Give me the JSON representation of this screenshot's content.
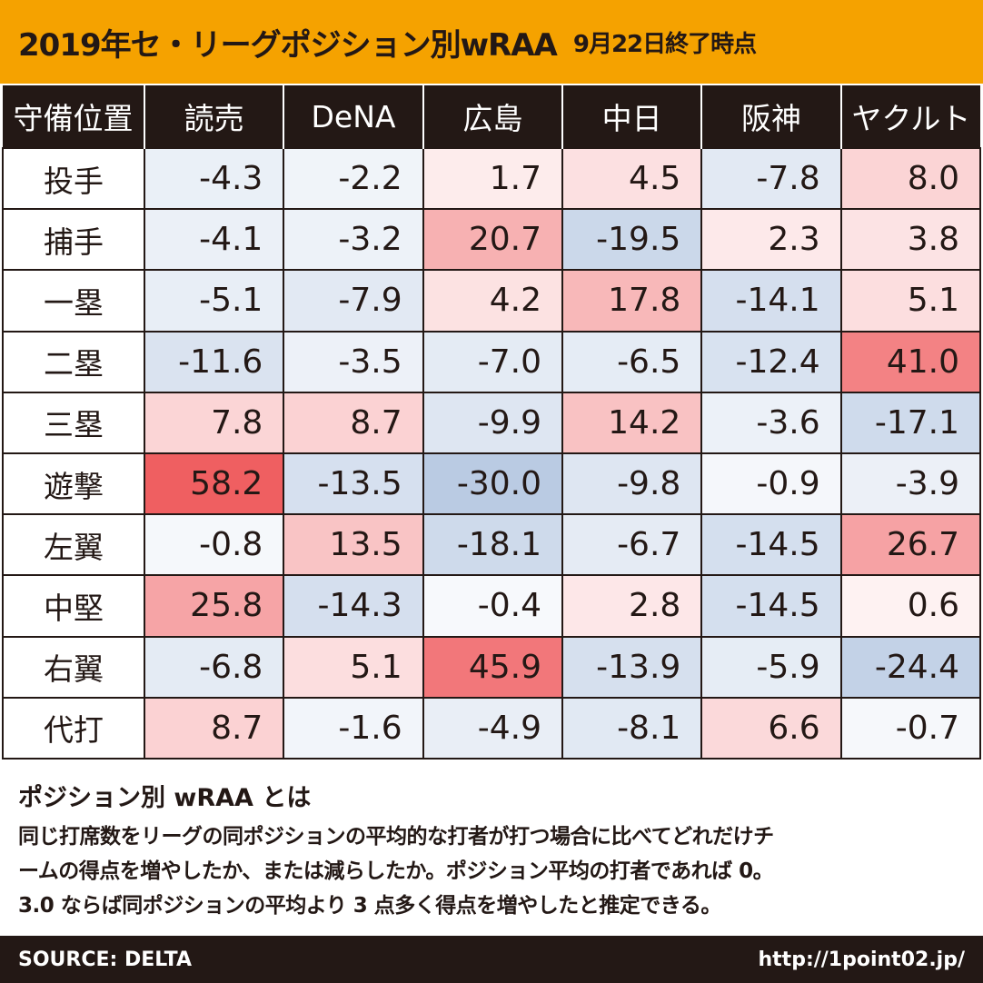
{
  "header": {
    "title": "2019年セ・リーグポジション別wRAA",
    "subtitle": "9月22日終了時点"
  },
  "chart_data": {
    "type": "table",
    "title": "2019年セ・リーグポジション別wRAA",
    "row_header_label": "守備位置",
    "columns": [
      "読売",
      "DeNA",
      "広島",
      "中日",
      "阪神",
      "ヤクルト"
    ],
    "rows": [
      {
        "position": "投手",
        "values": [
          -4.3,
          -2.2,
          1.7,
          4.5,
          -7.8,
          8.0
        ]
      },
      {
        "position": "捕手",
        "values": [
          -4.1,
          -3.2,
          20.7,
          -19.5,
          2.3,
          3.8
        ]
      },
      {
        "position": "一塁",
        "values": [
          -5.1,
          -7.9,
          4.2,
          17.8,
          -14.1,
          5.1
        ]
      },
      {
        "position": "二塁",
        "values": [
          -11.6,
          -3.5,
          -7.0,
          -6.5,
          -12.4,
          41.0
        ]
      },
      {
        "position": "三塁",
        "values": [
          7.8,
          8.7,
          -9.9,
          14.2,
          -3.6,
          -17.1
        ]
      },
      {
        "position": "遊撃",
        "values": [
          58.2,
          -13.5,
          -30.0,
          -9.8,
          -0.9,
          -3.9
        ]
      },
      {
        "position": "左翼",
        "values": [
          -0.8,
          13.5,
          -18.1,
          -6.7,
          -14.5,
          26.7
        ]
      },
      {
        "position": "中堅",
        "values": [
          25.8,
          -14.3,
          -0.4,
          2.8,
          -14.5,
          0.6
        ]
      },
      {
        "position": "右翼",
        "values": [
          -6.8,
          5.1,
          45.9,
          -13.9,
          -5.9,
          -24.4
        ]
      },
      {
        "position": "代打",
        "values": [
          8.7,
          -1.6,
          -4.9,
          -8.1,
          6.6,
          -0.7
        ]
      }
    ],
    "color_scale": {
      "positive": "#ef5b5e",
      "negative": "#8eaad2",
      "neutral": "#ffffff"
    }
  },
  "note": {
    "title": "ポジション別 wRAA とは",
    "lines": [
      "同じ打席数をリーグの同ポジションの平均的な打者が打つ場合に比べてどれだけチ",
      "ームの得点を増やしたか、または減らしたか。ポジション平均の打者であれば 0。",
      "3.0 ならば同ポジションの平均より 3 点多く得点を増やしたと推定できる。"
    ]
  },
  "footer": {
    "source": "SOURCE: DELTA",
    "url": "http://1point02.jp/"
  }
}
